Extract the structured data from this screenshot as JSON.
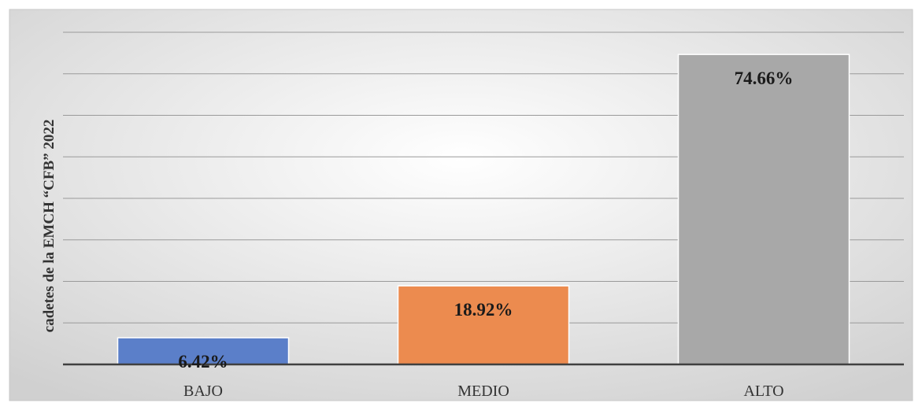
{
  "chart_data": {
    "type": "bar",
    "title": "",
    "xlabel": "",
    "ylabel": "cadetes de la EMCH “CFB” 2022",
    "categories": [
      "BAJO",
      "MEDIO",
      "ALTO"
    ],
    "values": [
      6.42,
      18.92,
      74.66
    ],
    "value_labels": [
      "6.42%",
      "18.92%",
      "74.66%"
    ],
    "unit": "%",
    "ylim": [
      0,
      80
    ],
    "gridlines": [
      10,
      20,
      30,
      40,
      50,
      60,
      70,
      80
    ],
    "grid": true,
    "legend": "none",
    "y_tick_labels_visible": false
  },
  "colors": {
    "bars": [
      "#5b7fc9",
      "#ec8b4f",
      "#a8a8a8"
    ],
    "bar_outline": "#ffffff",
    "gridline": "#9a9a9a",
    "baseline": "#404040",
    "background_center": "#ffffff",
    "background_edge": "#d0d0d0",
    "label_text": "#1a1a1a",
    "axis_text": "#333333",
    "frame": "#c8c8c8"
  }
}
